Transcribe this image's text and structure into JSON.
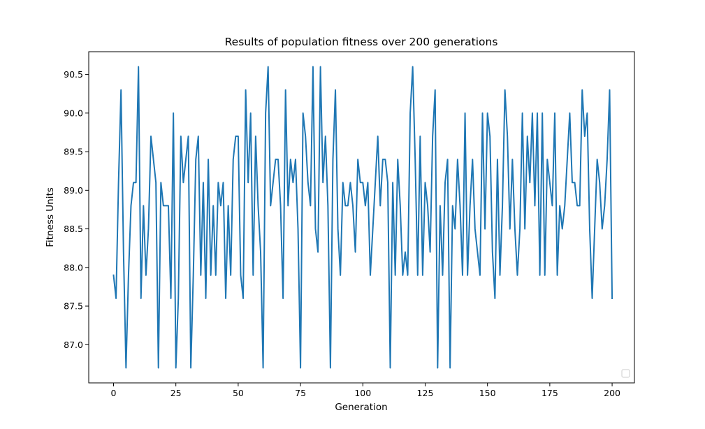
{
  "chart_data": {
    "type": "line",
    "title": "Results of population fitness over 200 generations",
    "xlabel": "Generation",
    "ylabel": "Fitness Units",
    "xlim": [
      -9.95,
      208.95
    ],
    "ylim": [
      86.505,
      90.795
    ],
    "xticks": [
      0,
      25,
      50,
      75,
      100,
      125,
      150,
      175,
      200
    ],
    "yticks": [
      87.0,
      87.5,
      88.0,
      88.5,
      89.0,
      89.5,
      90.0,
      90.5
    ],
    "xtick_labels": [
      "0",
      "25",
      "50",
      "75",
      "100",
      "125",
      "150",
      "175",
      "200"
    ],
    "ytick_labels": [
      "87.0",
      "87.5",
      "88.0",
      "88.5",
      "89.0",
      "89.5",
      "90.0",
      "90.5"
    ],
    "grid": false,
    "legend": "lower-right (empty)",
    "series": [
      {
        "color": "#1f77b4",
        "x_start": 0,
        "x_step": 1,
        "values": [
          87.9,
          87.6,
          89.1,
          90.3,
          88.2,
          86.7,
          87.9,
          88.8,
          89.1,
          89.1,
          90.6,
          87.6,
          88.8,
          87.9,
          88.5,
          89.7,
          89.4,
          89.1,
          86.7,
          89.1,
          88.8,
          88.8,
          88.8,
          87.6,
          90.0,
          86.7,
          87.6,
          89.7,
          89.1,
          89.4,
          89.7,
          86.7,
          87.9,
          89.4,
          89.7,
          87.9,
          89.1,
          87.6,
          89.4,
          87.9,
          88.8,
          87.9,
          89.1,
          88.8,
          89.1,
          87.6,
          88.8,
          87.9,
          89.4,
          89.7,
          89.7,
          87.9,
          87.6,
          90.3,
          89.1,
          90.0,
          87.9,
          89.7,
          88.8,
          88.2,
          86.7,
          90.0,
          90.6,
          88.8,
          89.1,
          89.4,
          89.4,
          88.8,
          87.6,
          90.3,
          88.8,
          89.4,
          89.1,
          89.4,
          88.5,
          86.7,
          90.0,
          89.7,
          89.1,
          88.8,
          90.6,
          88.5,
          88.2,
          90.6,
          89.1,
          89.7,
          88.8,
          86.7,
          89.4,
          90.3,
          88.5,
          87.9,
          89.1,
          88.8,
          88.8,
          89.1,
          88.8,
          88.2,
          89.4,
          89.1,
          89.1,
          88.8,
          89.1,
          87.9,
          88.5,
          89.1,
          89.7,
          88.8,
          89.4,
          89.4,
          89.1,
          86.7,
          89.1,
          87.9,
          89.4,
          88.8,
          87.9,
          88.2,
          87.9,
          90.0,
          90.6,
          89.4,
          87.9,
          89.7,
          87.9,
          89.1,
          88.8,
          88.2,
          89.7,
          90.3,
          86.7,
          88.8,
          87.9,
          89.1,
          89.4,
          86.7,
          88.8,
          88.5,
          89.4,
          88.8,
          87.9,
          90.0,
          87.9,
          88.8,
          89.4,
          88.5,
          88.2,
          87.9,
          90.0,
          88.5,
          90.0,
          89.7,
          88.2,
          87.6,
          89.4,
          87.9,
          88.8,
          90.3,
          89.7,
          88.5,
          89.4,
          88.5,
          87.9,
          88.5,
          90.0,
          88.5,
          89.7,
          89.1,
          90.0,
          88.8,
          90.0,
          87.9,
          90.0,
          87.9,
          89.4,
          89.1,
          88.8,
          90.0,
          87.9,
          88.8,
          88.5,
          88.8,
          89.4,
          90.0,
          89.1,
          89.1,
          88.8,
          88.8,
          90.3,
          89.7,
          90.0,
          88.5,
          87.6,
          88.5,
          89.4,
          89.1,
          88.5,
          88.8,
          89.4,
          90.3,
          87.6
        ]
      }
    ]
  }
}
